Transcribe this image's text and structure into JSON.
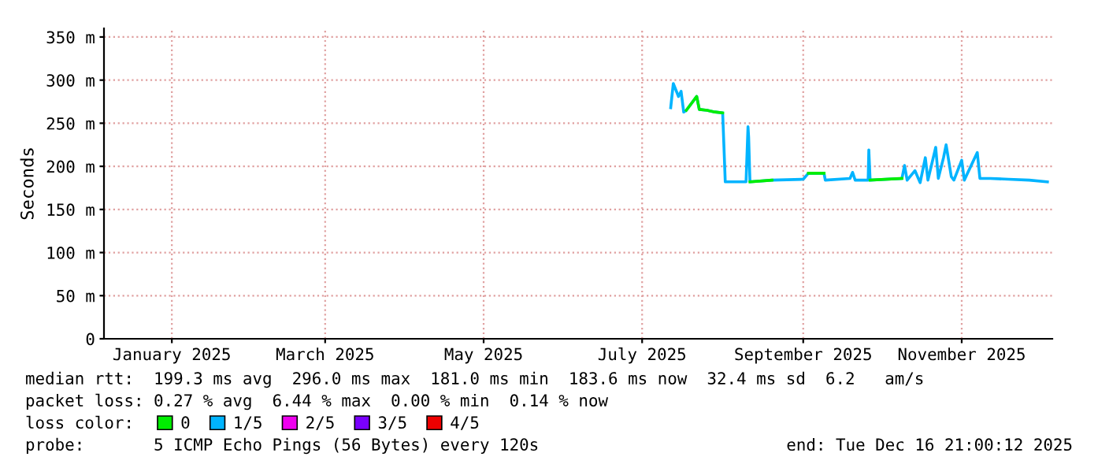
{
  "chart_data": {
    "type": "line",
    "ylabel": "Seconds",
    "legend_title": "loss color:",
    "x": [
      "2025-07-23",
      "2025-07-24",
      "2025-07-26",
      "2025-07-27",
      "2025-07-28",
      "2025-07-29",
      "2025-08-02",
      "2025-08-03",
      "2025-08-06",
      "2025-08-09",
      "2025-08-12",
      "2025-08-12T12:00",
      "2025-08-13",
      "2025-08-21",
      "2025-08-21T18:00",
      "2025-08-22",
      "2025-08-22T12:00",
      "2025-08-31",
      "2025-09-12",
      "2025-09-14",
      "2025-09-20",
      "2025-09-20T12:00",
      "2025-09-30",
      "2025-10-01",
      "2025-10-02",
      "2025-10-07",
      "2025-10-07T06:00",
      "2025-10-07T18:00",
      "2025-10-20",
      "2025-10-21",
      "2025-10-22",
      "2025-10-25",
      "2025-10-27",
      "2025-10-29",
      "2025-10-30",
      "2025-11-02",
      "2025-11-03",
      "2025-11-05",
      "2025-11-06",
      "2025-11-08",
      "2025-11-09",
      "2025-11-12",
      "2025-11-13",
      "2025-11-18",
      "2025-11-19",
      "2025-11-23",
      "2025-11-30",
      "2025-12-08",
      "2025-12-15"
    ],
    "series": [
      {
        "name": "0",
        "color": "#00ee00",
        "values": [
          null,
          null,
          null,
          null,
          null,
          265,
          281,
          266,
          265,
          263,
          262,
          null,
          null,
          null,
          null,
          null,
          182,
          184,
          null,
          192,
          192,
          null,
          null,
          null,
          null,
          184,
          null,
          184,
          186,
          null,
          null,
          null,
          null,
          null,
          null,
          null,
          null,
          null,
          null,
          null,
          null,
          null,
          null,
          null,
          null,
          null,
          null,
          null,
          null
        ]
      },
      {
        "name": "1/5",
        "color": "#00b4ff",
        "values": [
          268,
          296,
          281,
          287,
          263,
          265,
          281,
          266,
          265,
          263,
          262,
          222,
          182,
          182,
          246,
          234,
          182,
          184,
          185,
          192,
          192,
          184,
          186,
          193,
          184,
          184,
          219,
          184,
          186,
          201,
          184,
          195,
          181,
          210,
          184,
          222,
          186,
          210,
          225,
          188,
          184,
          207,
          184,
          216,
          186,
          186,
          185,
          184,
          182
        ]
      },
      {
        "name": "2/5",
        "color": "#ee00ee",
        "values": [
          null,
          null,
          null,
          null,
          null,
          null,
          null,
          null,
          null,
          null,
          null,
          null,
          null,
          null,
          null,
          null,
          null,
          null,
          null,
          null,
          null,
          null,
          null,
          null,
          null,
          null,
          null,
          null,
          null,
          null,
          null,
          null,
          null,
          null,
          null,
          null,
          null,
          null,
          null,
          null,
          null,
          null,
          null,
          null,
          null,
          null,
          null,
          null,
          null
        ]
      },
      {
        "name": "3/5",
        "color": "#7a00ff",
        "values": [
          null,
          null,
          null,
          null,
          null,
          null,
          null,
          null,
          null,
          null,
          null,
          null,
          null,
          null,
          null,
          null,
          null,
          null,
          null,
          null,
          null,
          null,
          null,
          null,
          null,
          null,
          null,
          null,
          null,
          null,
          null,
          null,
          null,
          null,
          null,
          null,
          null,
          null,
          null,
          null,
          null,
          null,
          null,
          null,
          null,
          null,
          null,
          null,
          null
        ]
      },
      {
        "name": "4/5",
        "color": "#ee0000",
        "values": [
          null,
          null,
          null,
          null,
          null,
          null,
          null,
          null,
          null,
          null,
          null,
          null,
          null,
          null,
          null,
          null,
          null,
          null,
          null,
          null,
          null,
          null,
          null,
          null,
          null,
          null,
          null,
          null,
          null,
          null,
          null,
          null,
          null,
          null,
          null,
          null,
          null,
          null,
          null,
          null,
          null,
          null,
          null,
          null,
          null,
          null,
          null,
          null,
          null
        ]
      }
    ],
    "xlim": [
      "2024-12-16T21:00",
      "2025-12-16T21:00"
    ],
    "xticks": [
      {
        "value": "2025-01-12",
        "label": "January 2025"
      },
      {
        "value": "2025-03-12",
        "label": "March 2025"
      },
      {
        "value": "2025-05-12",
        "label": "May 2025"
      },
      {
        "value": "2025-07-12",
        "label": "July 2025"
      },
      {
        "value": "2025-09-12",
        "label": "September 2025"
      },
      {
        "value": "2025-11-12",
        "label": "November 2025"
      }
    ],
    "ylim": [
      0,
      360
    ],
    "yticks": [
      0,
      {
        "value": 50,
        "label": "50 m"
      },
      {
        "value": 100,
        "label": "100 m"
      },
      {
        "value": 150,
        "label": "150 m"
      },
      {
        "value": 200,
        "label": "200 m"
      },
      {
        "value": 250,
        "label": "250 m"
      },
      {
        "value": 300,
        "label": "300 m"
      },
      {
        "value": 350,
        "label": "350 m"
      }
    ],
    "grid": true,
    "legend": "bottom left",
    "line_style": "solid",
    "annotations": [
      "median rtt:  199.3 ms avg  296.0 ms max  181.0 ms min  183.6 ms now  32.4 ms sd  6.2   am/s",
      "packet loss: 0.27 % avg  6.44 % max  0.00 % min  0.14 % now",
      "probe:       5 ICMP Echo Pings (56 Bytes) every 120s",
      "end: Tue Dec 16 21:00:12 2025"
    ]
  }
}
